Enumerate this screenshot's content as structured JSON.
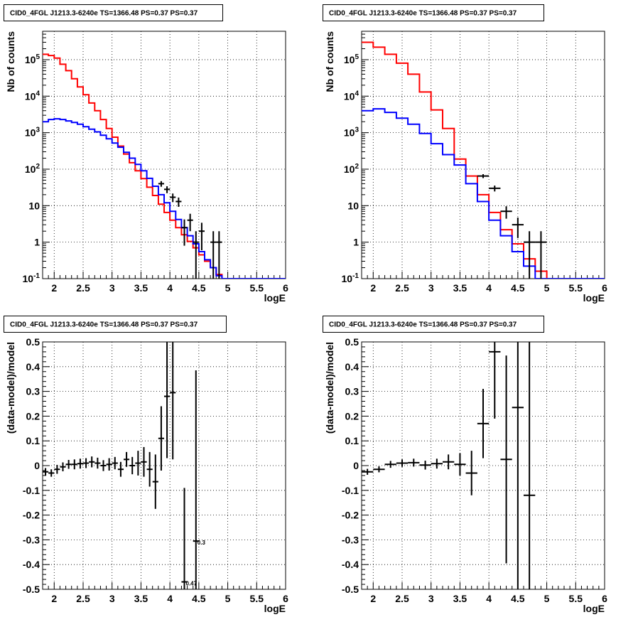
{
  "chart_data": [
    {
      "id": "top-left",
      "type": "step-histogram",
      "title": "CID0_4FGL J1213.3-6240e TS=1366.48 PS=0.37 PS=0.37",
      "xlabel": "logE",
      "ylabel": "Nb of counts",
      "xlim": [
        1.8,
        6.0
      ],
      "ylim": [
        0.1,
        600000
      ],
      "yscale": "log",
      "grid": true,
      "xticks": [
        2,
        2.5,
        3,
        3.5,
        4,
        4.5,
        5,
        5.5,
        6
      ],
      "xtick_labels": [
        "2",
        "2.5",
        "3",
        "3.5",
        "4",
        "4.5",
        "5",
        "5.5",
        "6"
      ],
      "yticks": [
        0.1,
        1,
        10,
        100,
        1000,
        10000,
        100000
      ],
      "ytick_labels": [
        "10^-1",
        "1",
        "10",
        "10^2",
        "10^3",
        "10^4",
        "10^5"
      ],
      "bin_edges": [
        1.8,
        1.9,
        2.0,
        2.1,
        2.2,
        2.3,
        2.4,
        2.5,
        2.6,
        2.7,
        2.8,
        2.9,
        3.0,
        3.1,
        3.2,
        3.3,
        3.4,
        3.5,
        3.6,
        3.7,
        3.8,
        3.9,
        4.0,
        4.1,
        4.2,
        4.3,
        4.4,
        4.5,
        4.6,
        4.7,
        4.8,
        4.9,
        5.0,
        5.1,
        5.2,
        5.3,
        5.4,
        5.5,
        5.6,
        5.7,
        5.8,
        5.9,
        6.0
      ],
      "series": [
        {
          "color": "#ff0000",
          "style": "step",
          "values": [
            140000,
            130000,
            110000,
            75000,
            50000,
            30000,
            18000,
            11000,
            6500,
            4000,
            2300,
            1300,
            750,
            430,
            260,
            150,
            90,
            55,
            32,
            19,
            11,
            6.5,
            4,
            2.5,
            1.6,
            1.05,
            0.7,
            0.45,
            0.3,
            0.2,
            0.13,
            0.1,
            0.1,
            0.1,
            0.1,
            0.1,
            0.1,
            0.1,
            0.1,
            0.1,
            0.1,
            0.1
          ]
        },
        {
          "color": "#0000ff",
          "style": "step",
          "values": [
            2000,
            2300,
            2400,
            2300,
            2100,
            1900,
            1700,
            1450,
            1250,
            1050,
            850,
            680,
            520,
            400,
            290,
            200,
            135,
            90,
            56,
            34,
            20,
            12,
            7,
            4.2,
            2.5,
            1.5,
            0.9,
            0.55,
            0.33,
            0.2,
            0.12,
            0.1,
            0.1,
            0.1,
            0.1,
            0.1,
            0.1,
            0.1,
            0.1,
            0.1,
            0.1,
            0.1
          ]
        },
        {
          "color": "#000000",
          "style": "errorbar",
          "points": [
            {
              "x": 3.85,
              "y": 40,
              "ylo": 33,
              "yhi": 47
            },
            {
              "x": 3.95,
              "y": 28,
              "ylo": 22,
              "yhi": 34
            },
            {
              "x": 4.05,
              "y": 17,
              "ylo": 12.5,
              "yhi": 21.5
            },
            {
              "x": 4.15,
              "y": 13,
              "ylo": 9.3,
              "yhi": 16.7
            },
            {
              "x": 4.25,
              "y": 2.5,
              "ylo": 0.8,
              "yhi": 4.2
            },
            {
              "x": 4.35,
              "y": 4,
              "ylo": 2,
              "yhi": 6
            },
            {
              "x": 4.45,
              "y": 1,
              "ylo": 0.1,
              "yhi": 2
            },
            {
              "x": 4.55,
              "y": 2,
              "ylo": 0.6,
              "yhi": 3.4
            },
            {
              "x": 4.75,
              "y": 1,
              "ylo": 0.1,
              "yhi": 2
            },
            {
              "x": 4.85,
              "y": 1,
              "ylo": 0.1,
              "yhi": 2
            }
          ]
        }
      ]
    },
    {
      "id": "top-right",
      "type": "step-histogram",
      "title": "CID0_4FGL J1213.3-6240e TS=1366.48 PS=0.37 PS=0.37",
      "xlabel": "logE",
      "ylabel": "Nb of counts",
      "xlim": [
        1.8,
        6.0
      ],
      "ylim": [
        0.1,
        600000
      ],
      "yscale": "log",
      "grid": true,
      "xticks": [
        2,
        2.5,
        3,
        3.5,
        4,
        4.5,
        5,
        5.5,
        6
      ],
      "xtick_labels": [
        "2",
        "2.5",
        "3",
        "3.5",
        "4",
        "4.5",
        "5",
        "5.5",
        "6"
      ],
      "yticks": [
        0.1,
        1,
        10,
        100,
        1000,
        10000,
        100000
      ],
      "ytick_labels": [
        "10^-1",
        "1",
        "10",
        "10^2",
        "10^3",
        "10^4",
        "10^5"
      ],
      "bin_edges": [
        1.8,
        2.0,
        2.2,
        2.4,
        2.6,
        2.8,
        3.0,
        3.2,
        3.4,
        3.6,
        3.8,
        4.0,
        4.2,
        4.4,
        4.6,
        4.8,
        5.0,
        5.2,
        5.4,
        5.6,
        5.8,
        6.0
      ],
      "series": [
        {
          "color": "#ff0000",
          "style": "step",
          "values": [
            300000,
            220000,
            140000,
            80000,
            40000,
            13000,
            4200,
            1300,
            190,
            65,
            20,
            6.5,
            2.2,
            0.9,
            0.35,
            0.16,
            0.1,
            0.1,
            0.1,
            0.1,
            0.1
          ]
        },
        {
          "color": "#0000ff",
          "style": "step",
          "values": [
            4000,
            4500,
            3600,
            2500,
            1700,
            950,
            500,
            250,
            130,
            40,
            13,
            4,
            1.5,
            0.55,
            0.22,
            0.1,
            0.1,
            0.1,
            0.1,
            0.1,
            0.1
          ]
        },
        {
          "color": "#000000",
          "style": "errorbar",
          "points": [
            {
              "x": 3.9,
              "y": 65,
              "ylo": 57,
              "yhi": 73
            },
            {
              "x": 4.1,
              "y": 30,
              "ylo": 24.5,
              "yhi": 35.5
            },
            {
              "x": 4.3,
              "y": 7,
              "ylo": 4.4,
              "yhi": 9.6
            },
            {
              "x": 4.5,
              "y": 3,
              "ylo": 1.3,
              "yhi": 4.7
            },
            {
              "x": 4.7,
              "y": 1,
              "ylo": 0.1,
              "yhi": 2
            },
            {
              "x": 4.9,
              "y": 1,
              "ylo": 0.1,
              "yhi": 2
            }
          ]
        }
      ]
    },
    {
      "id": "bottom-left",
      "type": "errorbar",
      "title": "CID0_4FGL J1213.3-6240e TS=1366.48 PS=0.37 PS=0.37",
      "xlabel": "logE",
      "ylabel": "(data-model)/model",
      "xlim": [
        1.8,
        6.0
      ],
      "ylim": [
        -0.5,
        0.5
      ],
      "yscale": "linear",
      "grid": true,
      "xticks": [
        2,
        2.5,
        3,
        3.5,
        4,
        4.5,
        5,
        5.5,
        6
      ],
      "xtick_labels": [
        "2",
        "2.5",
        "3",
        "3.5",
        "4",
        "4.5",
        "5",
        "5.5",
        "6"
      ],
      "yticks": [
        -0.5,
        -0.4,
        -0.3,
        -0.2,
        -0.1,
        0,
        0.1,
        0.2,
        0.3,
        0.4,
        0.5
      ],
      "ytick_labels": [
        "-0.5",
        "-0.4",
        "-0.3",
        "-0.2",
        "-0.1",
        "0",
        "0.1",
        "0.2",
        "0.3",
        "0.4",
        "0.5"
      ],
      "bin_half_width": 0.05,
      "points": [
        {
          "x": 1.85,
          "y": -0.025,
          "err": 0.015
        },
        {
          "x": 1.95,
          "y": -0.03,
          "err": 0.015
        },
        {
          "x": 2.05,
          "y": -0.015,
          "err": 0.018
        },
        {
          "x": 2.15,
          "y": -0.005,
          "err": 0.018
        },
        {
          "x": 2.25,
          "y": 0.005,
          "err": 0.018
        },
        {
          "x": 2.35,
          "y": 0.005,
          "err": 0.02
        },
        {
          "x": 2.45,
          "y": 0.008,
          "err": 0.02
        },
        {
          "x": 2.55,
          "y": 0.01,
          "err": 0.02
        },
        {
          "x": 2.65,
          "y": 0.015,
          "err": 0.022
        },
        {
          "x": 2.75,
          "y": 0.01,
          "err": 0.022
        },
        {
          "x": 2.85,
          "y": 0.0,
          "err": 0.022
        },
        {
          "x": 2.95,
          "y": 0.005,
          "err": 0.025
        },
        {
          "x": 3.05,
          "y": 0.01,
          "err": 0.025
        },
        {
          "x": 3.15,
          "y": -0.015,
          "err": 0.03
        },
        {
          "x": 3.25,
          "y": 0.025,
          "err": 0.03
        },
        {
          "x": 3.35,
          "y": 0.0,
          "err": 0.035
        },
        {
          "x": 3.45,
          "y": 0.01,
          "err": 0.05
        },
        {
          "x": 3.55,
          "y": 0.015,
          "err": 0.06
        },
        {
          "x": 3.65,
          "y": -0.015,
          "err": 0.07
        },
        {
          "x": 3.75,
          "y": -0.065,
          "err": 0.11
        },
        {
          "x": 3.85,
          "y": 0.11,
          "err": 0.13
        },
        {
          "x": 3.95,
          "y": 0.28,
          "err": 0.25
        },
        {
          "x": 4.05,
          "y": 0.295,
          "err": 0.27
        },
        {
          "x": 4.25,
          "y": -0.47,
          "err": 0.38
        },
        {
          "x": 4.45,
          "y": -0.305,
          "err": 0.69
        }
      ],
      "point_labels": [
        {
          "x": 4.25,
          "y": -0.47,
          "text": "0.47"
        },
        {
          "x": 4.45,
          "y": -0.305,
          "text": "0.3"
        }
      ]
    },
    {
      "id": "bottom-right",
      "type": "errorbar",
      "title": "CID0_4FGL J1213.3-6240e TS=1366.48 PS=0.37 PS=0.37",
      "xlabel": "logE",
      "ylabel": "(data-model)/model",
      "xlim": [
        1.8,
        6.0
      ],
      "ylim": [
        -0.5,
        0.5
      ],
      "yscale": "linear",
      "grid": true,
      "xticks": [
        2,
        2.5,
        3,
        3.5,
        4,
        4.5,
        5,
        5.5,
        6
      ],
      "xtick_labels": [
        "2",
        "2.5",
        "3",
        "3.5",
        "4",
        "4.5",
        "5",
        "5.5",
        "6"
      ],
      "yticks": [
        -0.5,
        -0.4,
        -0.3,
        -0.2,
        -0.1,
        0,
        0.1,
        0.2,
        0.3,
        0.4,
        0.5
      ],
      "ytick_labels": [
        "-0.5",
        "-0.4",
        "-0.3",
        "-0.2",
        "-0.1",
        "0",
        "0.1",
        "0.2",
        "0.3",
        "0.4",
        "0.5"
      ],
      "bin_half_width": 0.1,
      "points": [
        {
          "x": 1.9,
          "y": -0.025,
          "err": 0.012
        },
        {
          "x": 2.1,
          "y": -0.015,
          "err": 0.012
        },
        {
          "x": 2.3,
          "y": 0.005,
          "err": 0.014
        },
        {
          "x": 2.5,
          "y": 0.01,
          "err": 0.015
        },
        {
          "x": 2.7,
          "y": 0.012,
          "err": 0.016
        },
        {
          "x": 2.9,
          "y": 0.002,
          "err": 0.018
        },
        {
          "x": 3.1,
          "y": 0.008,
          "err": 0.02
        },
        {
          "x": 3.3,
          "y": 0.015,
          "err": 0.03
        },
        {
          "x": 3.5,
          "y": 0.005,
          "err": 0.045
        },
        {
          "x": 3.7,
          "y": -0.03,
          "err": 0.09
        },
        {
          "x": 3.9,
          "y": 0.17,
          "err": 0.14
        },
        {
          "x": 4.1,
          "y": 0.46,
          "err": 0.27
        },
        {
          "x": 4.3,
          "y": 0.025,
          "err": 0.42
        },
        {
          "x": 4.5,
          "y": 0.235,
          "err": 0.75
        },
        {
          "x": 4.7,
          "y": -0.12,
          "err": 0.9
        }
      ]
    }
  ]
}
